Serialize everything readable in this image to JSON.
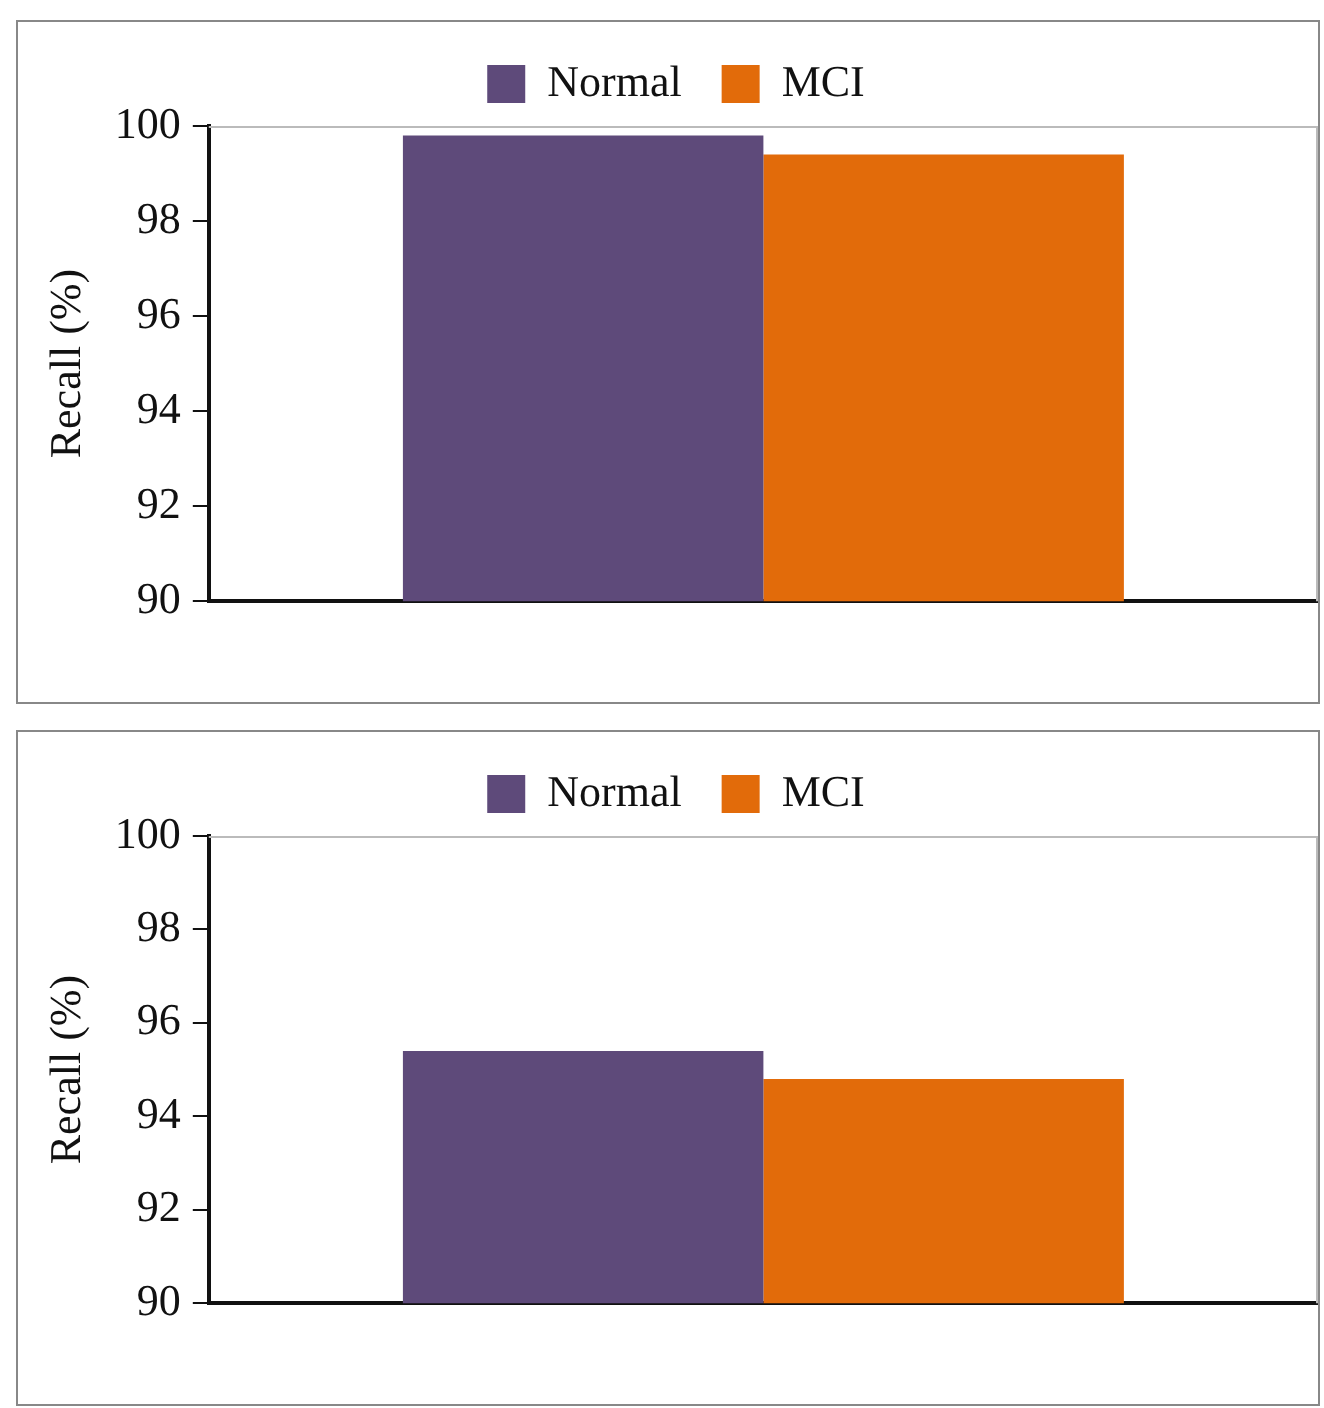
{
  "chart_data": [
    {
      "type": "bar",
      "ylabel": "Recall (%)",
      "categories": [
        null
      ],
      "ylim": [
        90,
        100
      ],
      "yticks": [
        90,
        92,
        94,
        96,
        98,
        100
      ],
      "grid": false,
      "legend": "top",
      "series": [
        {
          "name": "Normal",
          "color": "#5e4a7a",
          "values": [
            99.8
          ]
        },
        {
          "name": "MCI",
          "color": "#e26b0a",
          "values": [
            99.4
          ]
        }
      ]
    },
    {
      "type": "bar",
      "ylabel": "Recall (%)",
      "categories": [
        null
      ],
      "ylim": [
        90,
        100
      ],
      "yticks": [
        90,
        92,
        94,
        96,
        98,
        100
      ],
      "grid": false,
      "legend": "top",
      "series": [
        {
          "name": "Normal",
          "color": "#5e4a7a",
          "values": [
            95.4
          ]
        },
        {
          "name": "MCI",
          "color": "#e26b0a",
          "values": [
            94.8
          ]
        }
      ]
    }
  ]
}
